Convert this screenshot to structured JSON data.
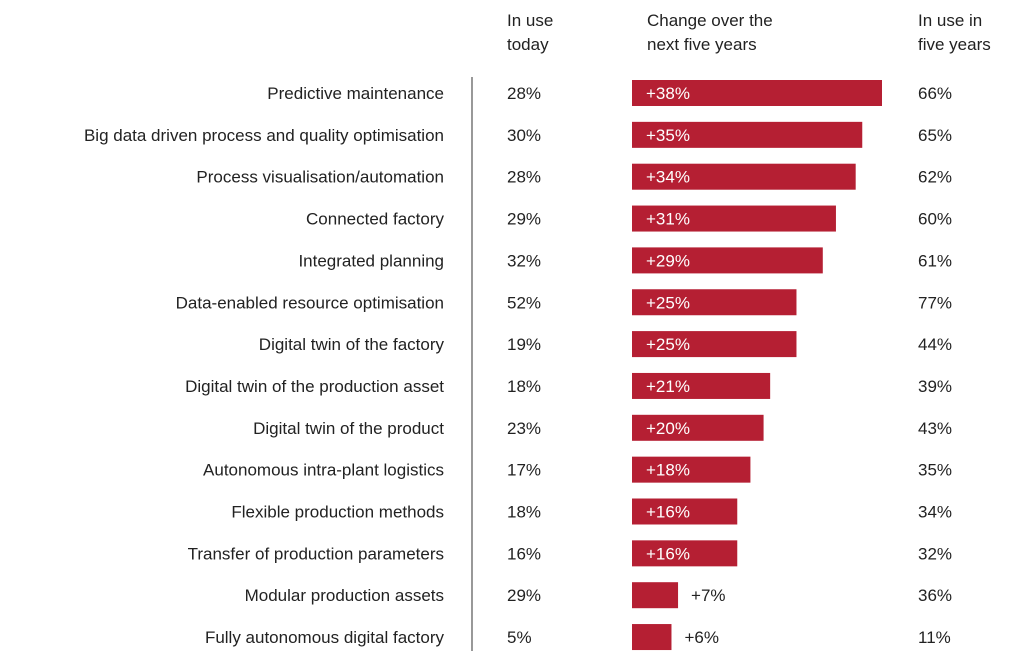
{
  "chart_data": {
    "type": "bar",
    "orientation": "horizontal",
    "headers": {
      "today": "In use\ntoday",
      "change": "Change over the\nnext five years",
      "future": "In use in\nfive years"
    },
    "categories": [
      "Predictive maintenance",
      "Big data driven process and quality optimisation",
      "Process visualisation/automation",
      "Connected factory",
      "Integrated planning",
      "Data-enabled resource optimisation",
      "Digital twin of the factory",
      "Digital twin of the production asset",
      "Digital twin of the product",
      "Autonomous intra-plant logistics",
      "Flexible production methods",
      "Transfer of production parameters",
      "Modular production assets",
      "Fully autonomous digital factory"
    ],
    "in_use_today": [
      "28%",
      "30%",
      "28%",
      "29%",
      "32%",
      "52%",
      "19%",
      "18%",
      "23%",
      "17%",
      "18%",
      "16%",
      "29%",
      "5%"
    ],
    "change": [
      38,
      35,
      34,
      31,
      29,
      25,
      25,
      21,
      20,
      18,
      16,
      16,
      7,
      6
    ],
    "change_labels": [
      "+38%",
      "+35%",
      "+34%",
      "+31%",
      "+29%",
      "+25%",
      "+25%",
      "+21%",
      "+20%",
      "+18%",
      "+16%",
      "+16%",
      "+7%",
      "+6%"
    ],
    "in_use_five_years": [
      "66%",
      "65%",
      "62%",
      "60%",
      "61%",
      "77%",
      "44%",
      "39%",
      "43%",
      "35%",
      "34%",
      "32%",
      "36%",
      "11%"
    ],
    "bar_color": "#b51f33",
    "grid": false
  }
}
